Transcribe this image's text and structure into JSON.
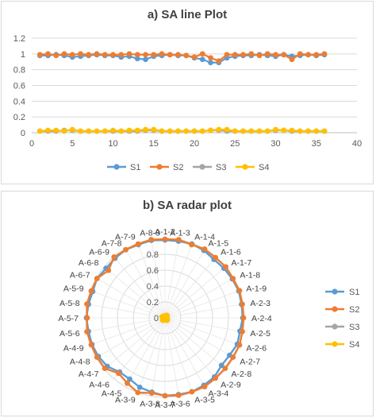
{
  "chart_data": [
    {
      "type": "line",
      "title": "a) SA line Plot",
      "xlabel": "",
      "ylabel": "",
      "xlim": [
        0,
        40
      ],
      "ylim": [
        0,
        1.2
      ],
      "x_ticks": [
        0,
        5,
        10,
        15,
        20,
        25,
        30,
        35,
        40
      ],
      "y_ticks": [
        0,
        0.2,
        0.4,
        0.6,
        0.8,
        1,
        1.2
      ],
      "grid": "horizontal",
      "legend_position": "bottom",
      "x": [
        1,
        2,
        3,
        4,
        5,
        6,
        7,
        8,
        9,
        10,
        11,
        12,
        13,
        14,
        15,
        16,
        17,
        18,
        19,
        20,
        21,
        22,
        23,
        24,
        25,
        26,
        27,
        28,
        29,
        30,
        31,
        32,
        33,
        34,
        35,
        36
      ],
      "series": [
        {
          "name": "S1",
          "color": "#5b9bd5",
          "values": [
            0.98,
            0.98,
            0.99,
            0.98,
            0.96,
            0.97,
            0.98,
            0.99,
            0.98,
            0.98,
            0.96,
            0.97,
            0.94,
            0.93,
            0.97,
            0.98,
            0.99,
            0.98,
            0.98,
            0.95,
            0.93,
            0.89,
            0.89,
            0.95,
            0.97,
            0.98,
            0.98,
            0.99,
            0.98,
            0.97,
            0.99,
            0.97,
            0.98,
            0.99,
            0.98,
            0.99
          ]
        },
        {
          "name": "S2",
          "color": "#ed7d31",
          "values": [
            0.99,
            1.0,
            0.98,
            1.0,
            0.99,
            1.0,
            0.99,
            1.0,
            0.99,
            0.99,
            0.99,
            1.0,
            0.99,
            0.99,
            0.99,
            1.0,
            0.99,
            0.99,
            0.98,
            0.96,
            1.0,
            0.95,
            0.91,
            0.99,
            0.99,
            0.99,
            1.0,
            0.98,
            1.0,
            0.99,
            0.99,
            0.93,
            1.0,
            0.99,
            0.99,
            1.0
          ]
        },
        {
          "name": "S3",
          "color": "#a5a5a5",
          "values": [
            0.02,
            0.02,
            0.02,
            0.03,
            0.03,
            0.02,
            0.02,
            0.02,
            0.02,
            0.02,
            0.02,
            0.02,
            0.02,
            0.03,
            0.03,
            0.02,
            0.02,
            0.02,
            0.02,
            0.02,
            0.02,
            0.03,
            0.03,
            0.02,
            0.02,
            0.02,
            0.02,
            0.02,
            0.02,
            0.03,
            0.03,
            0.02,
            0.02,
            0.02,
            0.02,
            0.02
          ]
        },
        {
          "name": "S4",
          "color": "#ffc000",
          "values": [
            0.02,
            0.03,
            0.03,
            0.02,
            0.04,
            0.02,
            0.02,
            0.02,
            0.02,
            0.03,
            0.02,
            0.03,
            0.03,
            0.04,
            0.04,
            0.02,
            0.02,
            0.02,
            0.02,
            0.02,
            0.02,
            0.03,
            0.04,
            0.04,
            0.02,
            0.02,
            0.02,
            0.02,
            0.02,
            0.04,
            0.03,
            0.03,
            0.02,
            0.02,
            0.02,
            0.02
          ]
        }
      ]
    },
    {
      "type": "radar",
      "title": "b) SA radar plot",
      "rlim": [
        0,
        1
      ],
      "r_ticks": [
        0,
        0.2,
        0.4,
        0.6,
        0.8
      ],
      "legend_position": "right",
      "categories": [
        "A-1-2",
        "A-1-3",
        "A-1-4",
        "A-1-5",
        "A-1-6",
        "A-1-7",
        "A-1-8",
        "A-1-9",
        "A-2-3",
        "A-2-4",
        "A-2-5",
        "A-2-6",
        "A-2-7",
        "A-2-8",
        "A-2-9",
        "A-3-4",
        "A-3-5",
        "A-3-6",
        "A-3-7",
        "A-3-8",
        "A-3-9",
        "A-4-5",
        "A-4-6",
        "A-4-7",
        "A-4-8",
        "A-4-9",
        "A-5-6",
        "A-5-7",
        "A-5-8",
        "A-5-9",
        "A-6-7",
        "A-6-8",
        "A-6-9",
        "A-7-8",
        "A-7-9",
        "A-8-9"
      ],
      "series": [
        {
          "name": "S1",
          "color": "#5b9bd5",
          "values": [
            0.98,
            0.98,
            0.99,
            0.98,
            0.96,
            0.97,
            0.98,
            0.99,
            0.98,
            0.98,
            0.96,
            0.97,
            0.94,
            0.93,
            0.97,
            0.98,
            0.99,
            0.98,
            0.98,
            0.95,
            0.93,
            0.89,
            0.89,
            0.95,
            0.97,
            0.98,
            0.98,
            0.99,
            0.98,
            0.97,
            0.99,
            0.97,
            0.98,
            0.99,
            0.98,
            0.99
          ]
        },
        {
          "name": "S2",
          "color": "#ed7d31",
          "values": [
            0.99,
            1.0,
            0.98,
            1.0,
            0.99,
            1.0,
            0.99,
            1.0,
            0.99,
            0.99,
            0.99,
            1.0,
            0.99,
            0.99,
            0.99,
            1.0,
            0.99,
            0.99,
            0.98,
            0.96,
            1.0,
            0.95,
            0.91,
            0.99,
            0.99,
            0.99,
            1.0,
            0.98,
            1.0,
            0.99,
            0.99,
            0.93,
            1.0,
            0.99,
            0.99,
            1.0
          ]
        },
        {
          "name": "S3",
          "color": "#a5a5a5",
          "values": [
            0.02,
            0.02,
            0.02,
            0.03,
            0.03,
            0.02,
            0.02,
            0.02,
            0.02,
            0.02,
            0.02,
            0.02,
            0.02,
            0.03,
            0.03,
            0.02,
            0.02,
            0.02,
            0.02,
            0.02,
            0.02,
            0.03,
            0.03,
            0.02,
            0.02,
            0.02,
            0.02,
            0.02,
            0.02,
            0.03,
            0.03,
            0.02,
            0.02,
            0.02,
            0.02,
            0.02
          ]
        },
        {
          "name": "S4",
          "color": "#ffc000",
          "values": [
            0.02,
            0.03,
            0.03,
            0.02,
            0.04,
            0.02,
            0.02,
            0.02,
            0.02,
            0.03,
            0.02,
            0.03,
            0.03,
            0.04,
            0.04,
            0.02,
            0.02,
            0.02,
            0.02,
            0.02,
            0.02,
            0.03,
            0.04,
            0.04,
            0.02,
            0.02,
            0.02,
            0.02,
            0.02,
            0.04,
            0.03,
            0.03,
            0.02,
            0.02,
            0.02,
            0.02
          ]
        }
      ]
    }
  ]
}
